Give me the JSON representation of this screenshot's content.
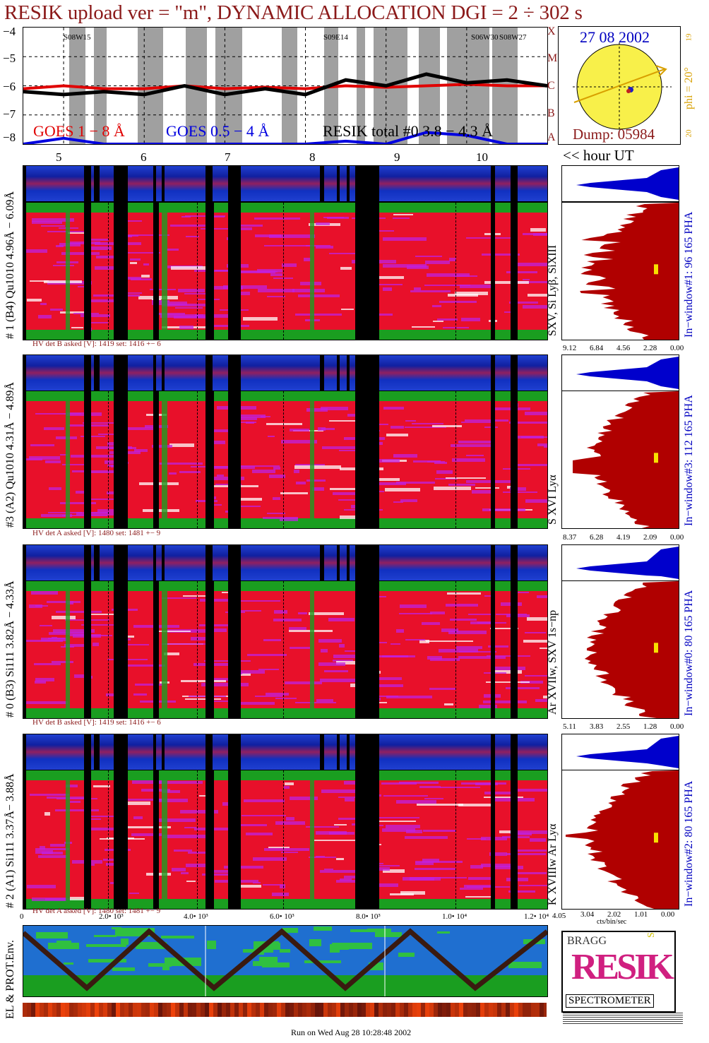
{
  "title": "RESIK upload ver = \"m\", DYNAMIC ALLOCATION  DGI =   2 ÷ 302 s",
  "colors": {
    "title": "#8b1a1a",
    "goes_long": "#e00000",
    "goes_short": "#0000e0",
    "resik": "#000000",
    "sun": "#f8f04a",
    "heat_red": "#e8102a",
    "heat_purple": "#c020e0",
    "heat_green": "#1a9e20",
    "heat_blue": "#1030c0",
    "hist_fill": "#b00000",
    "pha_fill": "#0000cc",
    "text_blue": "#0000c0"
  },
  "goes": {
    "y_ticks": [
      "−4",
      "−5",
      "−6",
      "−7",
      "−8"
    ],
    "class_labels": [
      "X",
      "M",
      "C",
      "B",
      "A"
    ],
    "flare_labels": [
      "S08W15",
      "S09E14",
      "S06W30",
      "S08W27"
    ],
    "legend_long": "GOES 1 − 8 Å",
    "legend_short": "GOES 0.5 − 4 Å",
    "legend_resik": "RESIK total #0  3.8 − 4.3 Å"
  },
  "sun": {
    "date": "27 08 2002",
    "dump": "Dump: 05984",
    "phi": "phi = 20°",
    "tick_top": "19",
    "tick_bottom": "20"
  },
  "hours": [
    "5",
    "6",
    "7",
    "8",
    "9",
    "10"
  ],
  "hour_caption": "<< hour UT",
  "channels": [
    {
      "side_label": "# 1 (B4) Qu1010 4.96Å − 6.09Å",
      "hv": "HV det B asked [V]:  1419 set:  1416  +−    6",
      "line_label": "SXV, Si Lyβ, SiXIII",
      "window_label": "In−window#1:  96 165  PHA",
      "axis": [
        "9.12",
        "6.84",
        "4.56",
        "2.28",
        "0.00"
      ]
    },
    {
      "side_label": "#3 (A2) Qu1010  4.31Å − 4.89Å",
      "hv": "HV det A asked [V]:  1480 set:  1481  +−    9",
      "line_label": "S XVI Lyα",
      "window_label": "In−window#3:  112 165  PHA",
      "axis": [
        "8.37",
        "6.28",
        "4.19",
        "2.09",
        "0.00"
      ]
    },
    {
      "side_label": "# 0 (B3) Si111  3.82Å − 4.33Å",
      "hv": "HV det B asked [V]:  1419 set:  1416  +−    6",
      "line_label": "Ar XVIIw,  SXV 1s−np",
      "window_label": "In−window#0:  80 165  PHA",
      "axis": [
        "5.11",
        "3.83",
        "2.55",
        "1.28",
        "0.00"
      ]
    },
    {
      "side_label": "# 2 (A1) Si111  3.37Å−  3.88Å",
      "hv": "HV det A asked [V]:  1480 set:  1481  +−    9",
      "line_label": "K XVIIIw  Ar Lyα",
      "window_label": "In−window#2:  80 165  PHA",
      "axis": [
        "3.04",
        "2.02",
        "1.01",
        "0.00"
      ],
      "axis_extra": "4.05",
      "axis_unit": "cts/bin/sec"
    }
  ],
  "bottom_axis": [
    "0",
    "2.0• 10³",
    "4.0• 10³",
    "6.0• 10³",
    "8.0• 10³",
    "1.0• 10⁴",
    "1.2• 10⁴"
  ],
  "env_label": "EL & PROT.Env.",
  "logo": {
    "top": "BRAGG",
    "middle": "RESIK",
    "right": "SOLAR",
    "bottom": "SPECTROMETER"
  },
  "footer": "Run on Wed Aug 28 10:28:48 2002",
  "chart_data": [
    {
      "type": "line",
      "title": "RESIK upload ver = \"m\", DYNAMIC ALLOCATION  DGI =   2 ÷ 302 s",
      "xlabel": "hour UT",
      "ylabel": "",
      "ylim": [
        -8,
        -4
      ],
      "x": [
        4.5,
        5,
        5.5,
        6,
        6.5,
        7,
        7.5,
        8,
        8.5,
        9,
        9.5,
        10,
        10.5,
        11
      ],
      "series": [
        {
          "name": "GOES 1 − 8 Å",
          "values": [
            -6.1,
            -6.0,
            -6.1,
            -6.1,
            -6.0,
            -6.1,
            -6.05,
            -6.1,
            -6.0,
            -6.05,
            -6.0,
            -5.95,
            -6.0,
            -6.0
          ]
        },
        {
          "name": "GOES 0.5 − 4 Å",
          "values": [
            -8,
            -7.8,
            -8,
            -8,
            -8,
            -8,
            -8,
            -8,
            -7.9,
            -8,
            -7.6,
            -7.7,
            -8,
            -8
          ]
        },
        {
          "name": "RESIK total #0  3.8 − 4.3 Å",
          "values": [
            -6.2,
            -6.3,
            -6.2,
            -6.3,
            -6.0,
            -6.3,
            -6.1,
            -6.3,
            -5.8,
            -6.0,
            -5.6,
            -5.9,
            -5.8,
            -6.0
          ]
        }
      ]
    },
    {
      "type": "area",
      "title": "",
      "xlabel": "",
      "ylabel": "",
      "x_ticks": [
        "0",
        "2.0• 10³",
        "4.0• 10³",
        "6.0• 10³",
        "8.0• 10³",
        "1.0• 10⁴",
        "1.2• 10⁴"
      ],
      "xlim": [
        0,
        12000
      ],
      "grid": true
    }
  ]
}
